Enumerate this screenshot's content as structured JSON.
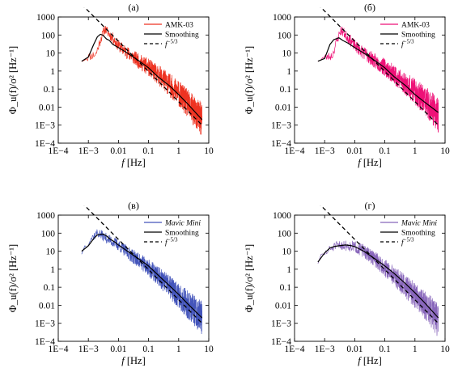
{
  "chart_data": [
    {
      "panel_label": "(а)",
      "type": "line",
      "xlabel_italic": "f",
      "xlabel_rest": " [Hz]",
      "ylabel": "Φ_u(f)/σ² [Hz⁻¹]",
      "x_scale": "log",
      "y_scale": "log",
      "xlim": [
        0.0001,
        10
      ],
      "ylim": [
        0.0001,
        1000
      ],
      "x_ticks": [
        "1E−4",
        "1E−3",
        "0.01",
        "0.1",
        "1",
        "10"
      ],
      "y_ticks": [
        "1E−4",
        "1E−3",
        "0.01",
        "0.1",
        "1",
        "10",
        "100",
        "1000"
      ],
      "legend_position": "top-right",
      "series": [
        {
          "name": "AMK-03",
          "color": "#ee3322",
          "style": "raw",
          "seed": 11,
          "x": [
            0.0006,
            0.0018,
            0.0025,
            0.0035,
            0.006,
            0.01,
            0.02,
            0.05,
            0.1,
            0.3,
            1,
            3,
            6
          ],
          "y": [
            5,
            10,
            60,
            250,
            90,
            30,
            12,
            4,
            2,
            0.5,
            0.08,
            0.01,
            0.003
          ]
        },
        {
          "name": "Smoothing",
          "color": "#000000",
          "style": "solid",
          "x": [
            0.0006,
            0.001,
            0.0015,
            0.002,
            0.0025,
            0.003,
            0.004,
            0.005,
            0.0065,
            0.01,
            0.02,
            0.05,
            0.1,
            0.2,
            0.5,
            1,
            2,
            6
          ],
          "y": [
            3.5,
            6,
            30,
            80,
            110,
            100,
            60,
            50,
            30,
            20,
            10,
            3.5,
            1.5,
            0.5,
            0.15,
            0.05,
            0.015,
            0.002
          ]
        },
        {
          "name": "f^{−5/3}",
          "color": "#000000",
          "style": "dashed",
          "x": [
            0.0006,
            6
          ],
          "y": [
            5000,
            0.001
          ]
        }
      ]
    },
    {
      "panel_label": "(б)",
      "type": "line",
      "xlabel_italic": "f",
      "xlabel_rest": " [Hz]",
      "ylabel": "Φ_u(f)/σ² [Hz⁻¹]",
      "x_scale": "log",
      "y_scale": "log",
      "xlim": [
        0.0001,
        10
      ],
      "ylim": [
        0.0001,
        1000
      ],
      "x_ticks": [
        "1E−4",
        "1E−3",
        "0.01",
        "0.1",
        "1",
        "10"
      ],
      "y_ticks": [
        "1E−4",
        "1E−3",
        "0.01",
        "0.1",
        "1",
        "10",
        "100",
        "1000"
      ],
      "legend_position": "top-right",
      "series": [
        {
          "name": "AMK-03",
          "color": "#ee1177",
          "style": "raw",
          "seed": 23,
          "x": [
            0.0006,
            0.0018,
            0.0025,
            0.0035,
            0.006,
            0.01,
            0.02,
            0.05,
            0.1,
            0.3,
            1,
            3,
            6
          ],
          "y": [
            5,
            8,
            50,
            220,
            80,
            30,
            12,
            4,
            2,
            0.5,
            0.1,
            0.02,
            0.005
          ]
        },
        {
          "name": "Smoothing",
          "color": "#000000",
          "style": "solid",
          "x": [
            0.0006,
            0.001,
            0.0015,
            0.002,
            0.003,
            0.004,
            0.006,
            0.01,
            0.02,
            0.05,
            0.1,
            0.2,
            0.5,
            1,
            2,
            6
          ],
          "y": [
            3.5,
            5,
            30,
            55,
            70,
            50,
            35,
            20,
            10,
            3.5,
            1.5,
            0.5,
            0.15,
            0.05,
            0.02,
            0.005
          ]
        },
        {
          "name": "f^{−5/3}",
          "color": "#000000",
          "style": "dashed",
          "x": [
            0.0006,
            6
          ],
          "y": [
            5000,
            0.001
          ]
        }
      ]
    },
    {
      "panel_label": "(в)",
      "type": "line",
      "xlabel_italic": "f",
      "xlabel_rest": " [Hz]",
      "ylabel": "Φ_u(f)/σ² [Hz⁻¹]",
      "x_scale": "log",
      "y_scale": "log",
      "xlim": [
        0.0001,
        10
      ],
      "ylim": [
        0.0001,
        1000
      ],
      "x_ticks": [
        "1E−4",
        "1E−3",
        "0.01",
        "0.1",
        "1",
        "10"
      ],
      "y_ticks": [
        "1E−4",
        "1E−3",
        "0.01",
        "0.1",
        "1",
        "10",
        "100",
        "1000"
      ],
      "legend_position": "top-right",
      "series": [
        {
          "name": "Mavic Mini",
          "color": "#4455bb",
          "style": "raw",
          "seed": 37,
          "x": [
            0.0006,
            0.001,
            0.002,
            0.004,
            0.01,
            0.02,
            0.05,
            0.1,
            0.3,
            1,
            3,
            6
          ],
          "y": [
            10,
            40,
            120,
            60,
            25,
            10,
            3.5,
            1.5,
            0.3,
            0.05,
            0.008,
            0.003
          ]
        },
        {
          "name": "Smoothing",
          "color": "#000000",
          "style": "solid",
          "x": [
            0.0006,
            0.001,
            0.0015,
            0.002,
            0.003,
            0.004,
            0.005,
            0.008,
            0.01,
            0.02,
            0.05,
            0.1,
            0.2,
            0.5,
            1,
            2,
            6
          ],
          "y": [
            10,
            20,
            50,
            80,
            90,
            70,
            50,
            30,
            22,
            10,
            3.5,
            1.5,
            0.5,
            0.12,
            0.04,
            0.012,
            0.002
          ]
        },
        {
          "name": "f^{−5/3}",
          "color": "#000000",
          "style": "dashed",
          "x": [
            0.0006,
            6
          ],
          "y": [
            5000,
            0.001
          ]
        }
      ]
    },
    {
      "panel_label": "(г)",
      "type": "line",
      "xlabel_italic": "f",
      "xlabel_rest": " [Hz]",
      "ylabel": "Φ_u(f)/σ² [Hz⁻¹]",
      "x_scale": "log",
      "y_scale": "log",
      "xlim": [
        0.0001,
        10
      ],
      "ylim": [
        0.0001,
        1000
      ],
      "x_ticks": [
        "1E−4",
        "1E−3",
        "0.01",
        "0.1",
        "1",
        "10"
      ],
      "y_ticks": [
        "1E−4",
        "1E−3",
        "0.01",
        "0.1",
        "1",
        "10",
        "100",
        "1000"
      ],
      "legend_position": "top-right",
      "series": [
        {
          "name": "Mavic Mini",
          "color": "#8866bb",
          "style": "raw",
          "seed": 51,
          "x": [
            0.0006,
            0.001,
            0.002,
            0.004,
            0.01,
            0.02,
            0.05,
            0.1,
            0.3,
            1,
            3,
            6
          ],
          "y": [
            3,
            8,
            20,
            25,
            20,
            12,
            4,
            1.5,
            0.3,
            0.05,
            0.008,
            0.002
          ]
        },
        {
          "name": "Smoothing",
          "color": "#000000",
          "style": "solid",
          "x": [
            0.0006,
            0.001,
            0.0015,
            0.002,
            0.003,
            0.005,
            0.008,
            0.01,
            0.02,
            0.05,
            0.1,
            0.2,
            0.5,
            1,
            2,
            6
          ],
          "y": [
            2.5,
            8,
            15,
            18,
            20,
            22,
            20,
            18,
            10,
            3.5,
            1.5,
            0.6,
            0.15,
            0.05,
            0.015,
            0.002
          ]
        },
        {
          "name": "f^{−5/3}",
          "color": "#000000",
          "style": "dashed",
          "x": [
            0.0006,
            6
          ],
          "y": [
            5000,
            0.001
          ]
        }
      ]
    }
  ]
}
